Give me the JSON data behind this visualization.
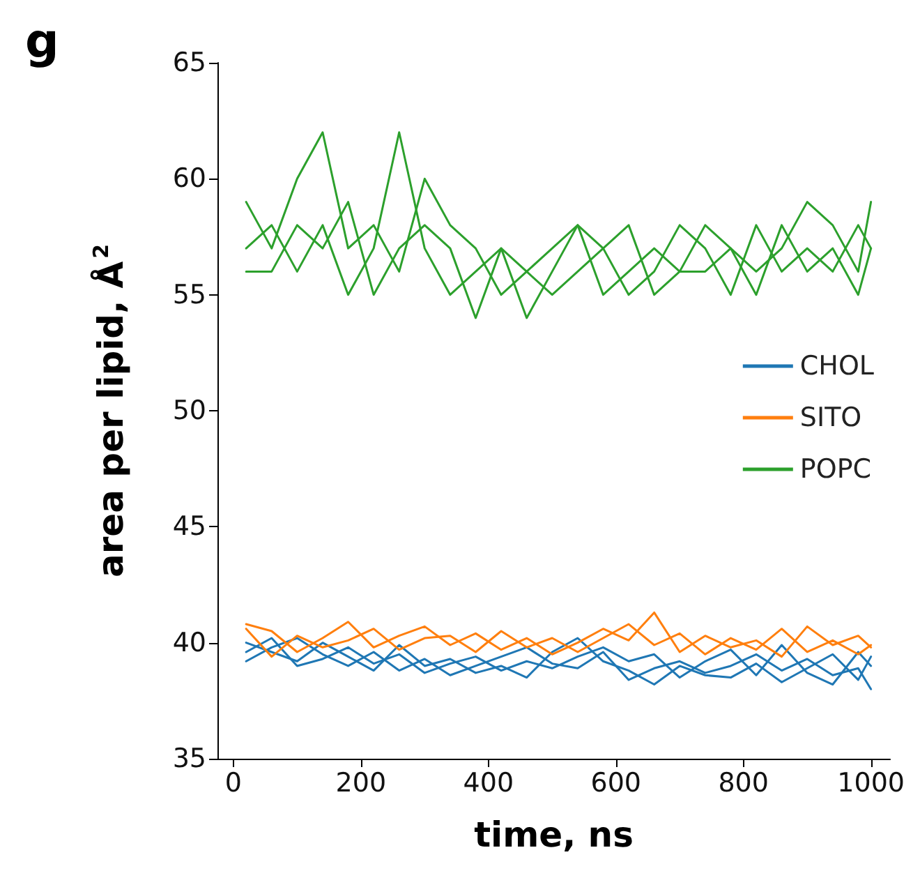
{
  "chart_data": {
    "type": "line",
    "title": "g",
    "xlabel": "time, ns",
    "ylabel": "area per lipid, Å$^{2}$",
    "x": [
      20,
      60,
      100,
      140,
      180,
      220,
      260,
      300,
      340,
      380,
      420,
      460,
      500,
      540,
      580,
      620,
      660,
      700,
      740,
      780,
      820,
      860,
      900,
      940,
      980,
      1000
    ],
    "xlim": [
      -25,
      1030
    ],
    "xticks": [
      0,
      200,
      400,
      600,
      800,
      1000
    ],
    "ylim": [
      35,
      65
    ],
    "yticks": [
      35,
      40,
      45,
      50,
      55,
      60,
      65
    ],
    "grid": false,
    "legend": "right",
    "marker": "none",
    "series": [
      {
        "name": "CHOL",
        "color": "#1f77b4",
        "values": [
          39.2,
          39.8,
          40.2,
          39.5,
          39.0,
          39.6,
          38.8,
          39.3,
          38.6,
          39.0,
          39.4,
          39.8,
          39.1,
          38.9,
          39.6,
          38.4,
          38.9,
          39.2,
          38.7,
          39.0,
          39.5,
          38.8,
          39.3,
          38.6,
          38.9,
          38.0
        ]
      },
      {
        "color": "#1f77b4",
        "values": [
          40.0,
          39.6,
          39.2,
          40.0,
          39.4,
          38.8,
          39.9,
          39.0,
          39.3,
          38.7,
          39.0,
          38.5,
          39.6,
          40.2,
          39.2,
          38.8,
          38.2,
          39.0,
          38.6,
          38.5,
          39.1,
          38.3,
          38.9,
          39.5,
          38.4,
          39.4
        ]
      },
      {
        "color": "#1f77b4",
        "values": [
          39.6,
          40.2,
          39.0,
          39.3,
          39.8,
          39.1,
          39.5,
          38.7,
          39.1,
          39.4,
          38.8,
          39.2,
          38.9,
          39.4,
          39.8,
          39.2,
          39.5,
          38.5,
          39.2,
          39.7,
          38.6,
          39.9,
          38.7,
          38.2,
          39.6,
          39.0
        ]
      },
      {
        "name": "SITO",
        "color": "#ff7f0e",
        "values": [
          40.8,
          40.5,
          39.6,
          40.2,
          40.9,
          39.8,
          40.3,
          40.7,
          39.9,
          40.4,
          39.7,
          40.2,
          39.5,
          40.0,
          40.6,
          40.1,
          41.3,
          39.6,
          40.3,
          39.8,
          40.1,
          39.4,
          40.7,
          39.9,
          40.3,
          39.8
        ]
      },
      {
        "color": "#ff7f0e",
        "values": [
          40.6,
          39.4,
          40.3,
          39.8,
          40.1,
          40.6,
          39.7,
          40.2,
          40.3,
          39.6,
          40.5,
          39.8,
          40.2,
          39.6,
          40.2,
          40.8,
          39.9,
          40.4,
          39.5,
          40.2,
          39.7,
          40.6,
          39.6,
          40.1,
          39.5,
          39.9
        ]
      },
      {
        "name": "POPC",
        "color": "#2ca02c",
        "values": [
          59,
          57,
          60,
          62,
          57,
          58,
          56,
          60,
          58,
          57,
          55,
          56,
          57,
          58,
          55,
          56,
          57,
          56,
          58,
          57,
          56,
          57,
          59,
          58,
          56,
          59
        ]
      },
      {
        "color": "#2ca02c",
        "values": [
          57,
          58,
          56,
          58,
          55,
          57,
          62,
          57,
          55,
          56,
          57,
          54,
          56,
          58,
          57,
          55,
          56,
          58,
          57,
          55,
          58,
          56,
          57,
          56,
          58,
          57
        ]
      },
      {
        "color": "#2ca02c",
        "values": [
          56,
          56,
          58,
          57,
          59,
          55,
          57,
          58,
          57,
          54,
          57,
          56,
          55,
          56,
          57,
          58,
          55,
          56,
          56,
          57,
          55,
          58,
          56,
          57,
          55,
          57
        ]
      }
    ]
  }
}
